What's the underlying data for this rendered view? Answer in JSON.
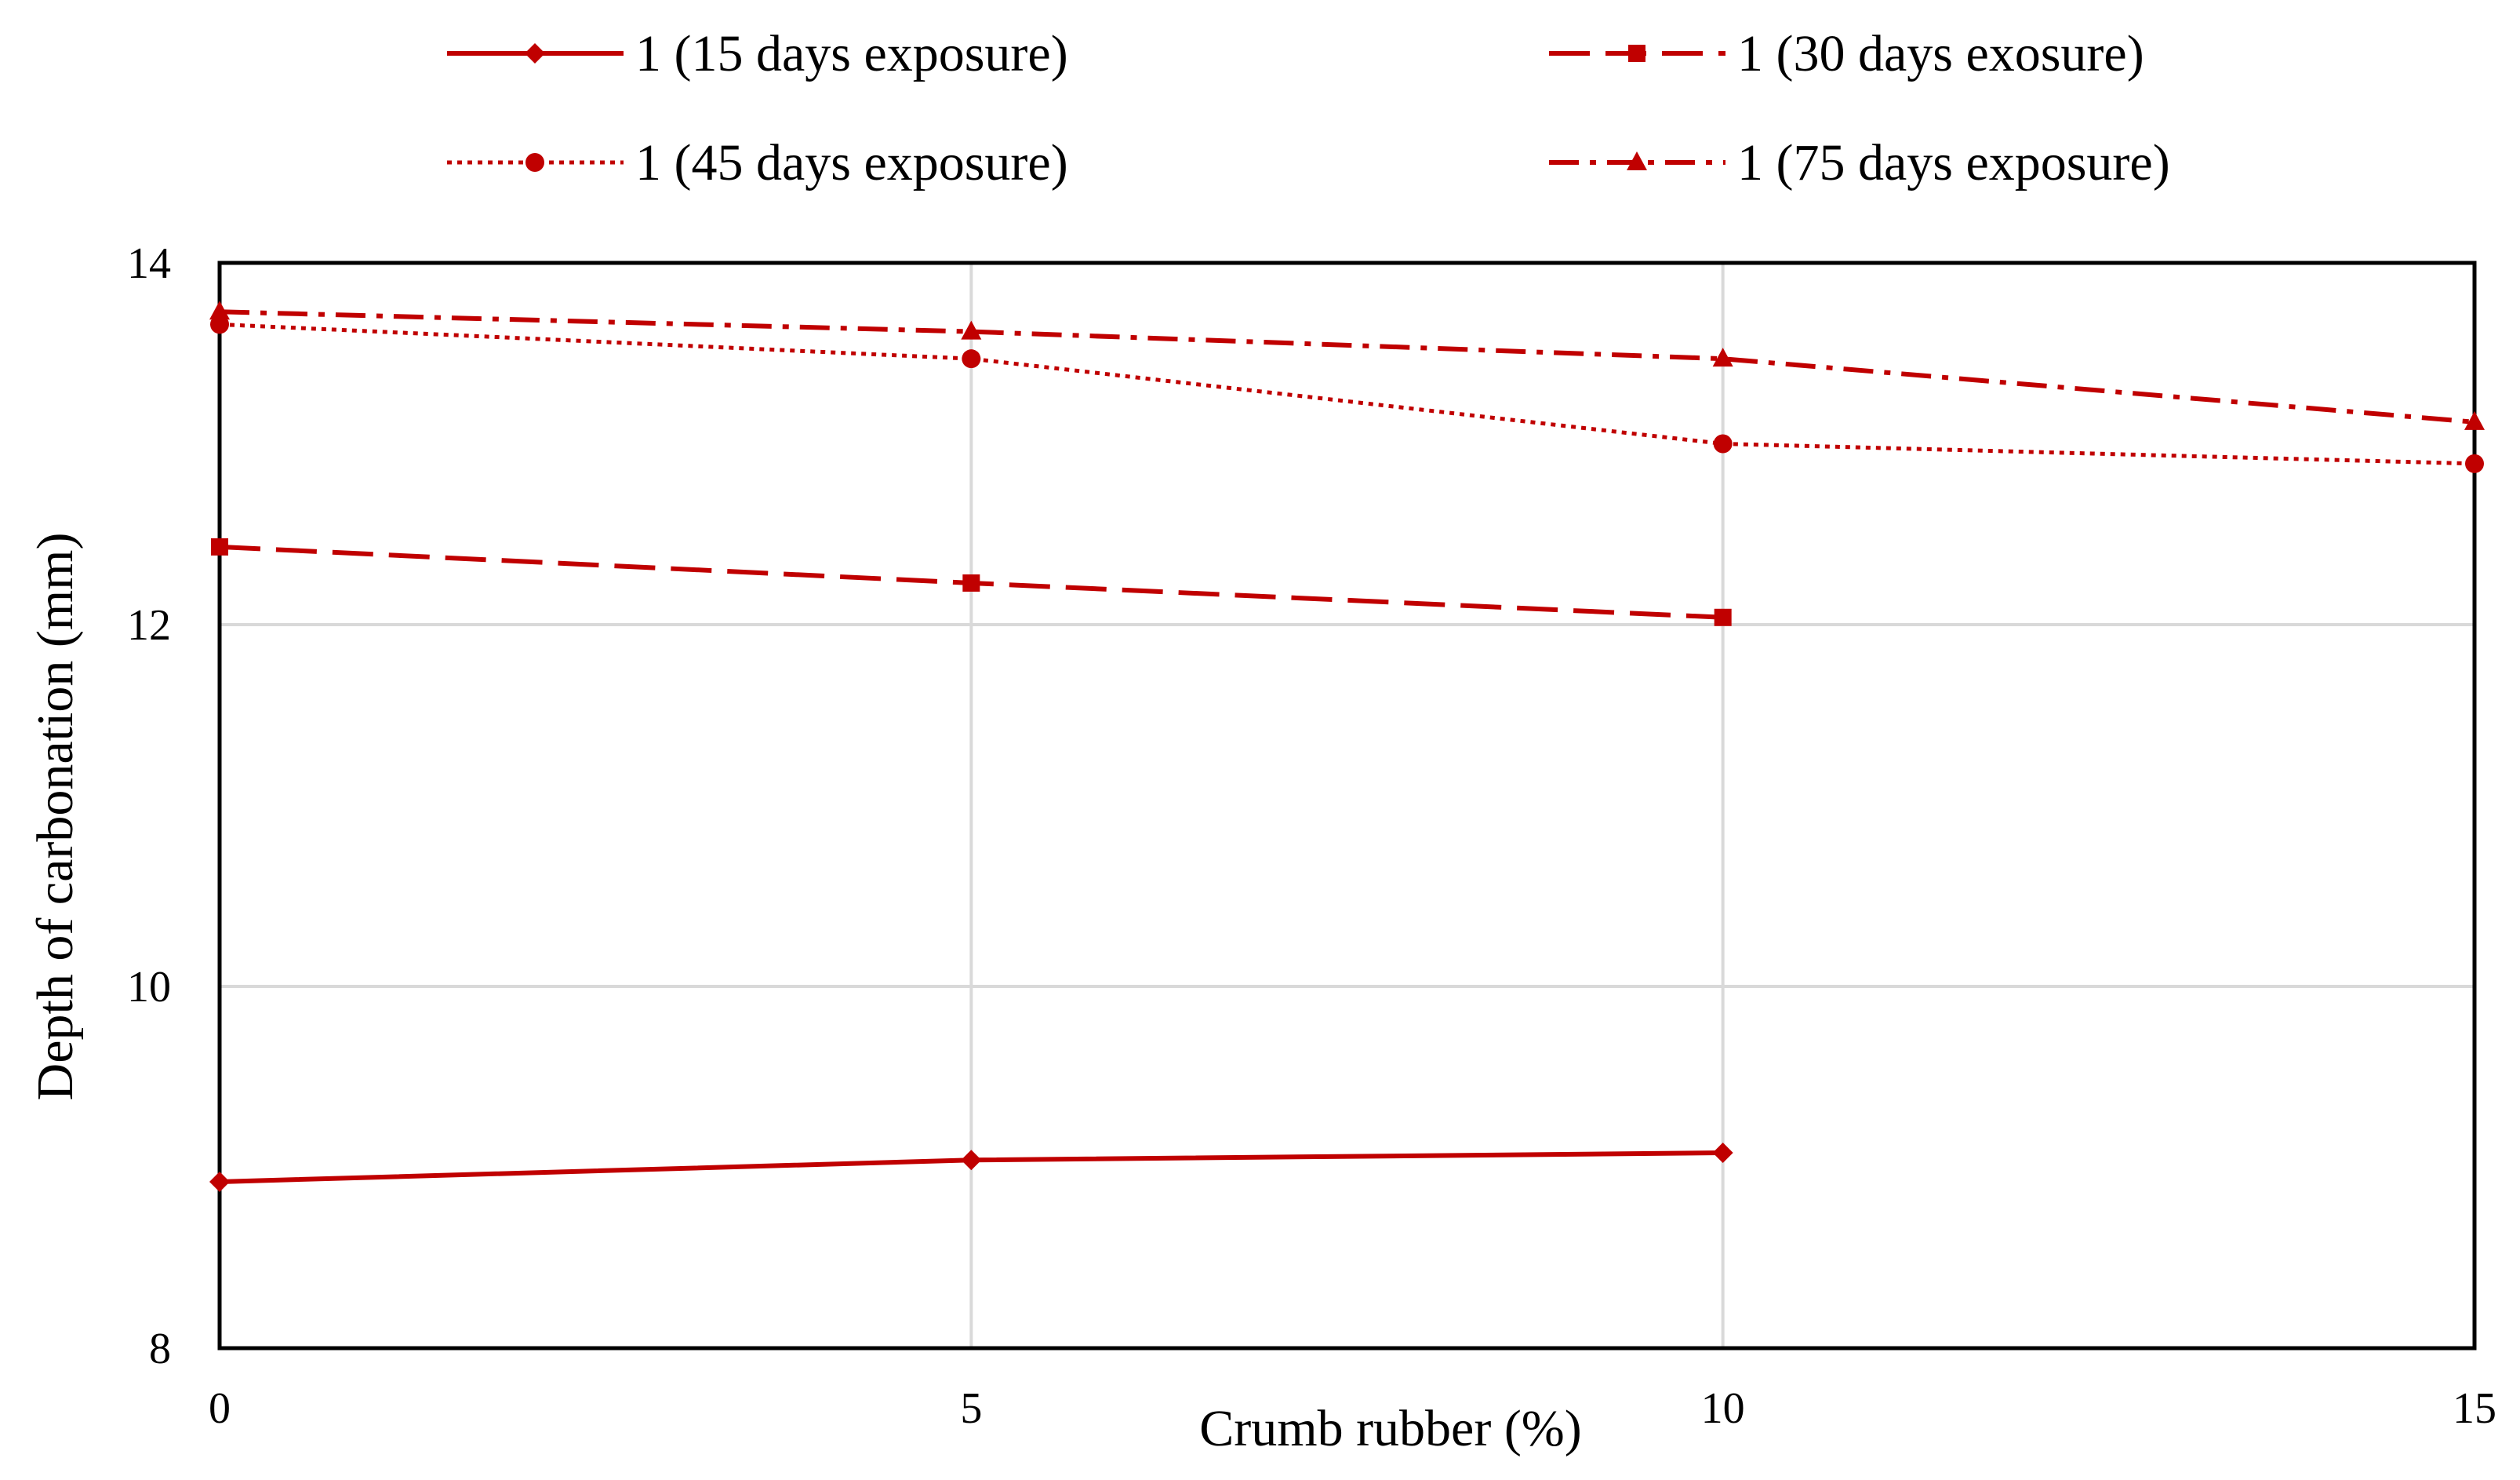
{
  "chart_data": {
    "type": "line",
    "title": "",
    "xlabel": "Crumb rubber (%)",
    "ylabel": "Depth of carbonation (mm)",
    "xlim": [
      0,
      15
    ],
    "ylim": [
      8,
      14
    ],
    "xticks": [
      0,
      5,
      10,
      15
    ],
    "yticks": [
      8,
      10,
      12,
      14
    ],
    "grid": true,
    "legend_position": "top",
    "series_color": "#C00000",
    "series": [
      {
        "name": "1 (15 days exposure)",
        "x": [
          0,
          5,
          10
        ],
        "values": [
          8.92,
          9.04,
          9.08
        ],
        "line": "solid",
        "marker": "diamond"
      },
      {
        "name": "1 (30 days exosure)",
        "x": [
          0,
          5,
          10
        ],
        "values": [
          12.43,
          12.23,
          12.04
        ],
        "line": "dashed",
        "marker": "square"
      },
      {
        "name": "1 (45 days exposure)",
        "x": [
          0,
          5,
          10,
          15
        ],
        "values": [
          13.66,
          13.47,
          13.0,
          12.89
        ],
        "line": "dotted",
        "marker": "circle"
      },
      {
        "name": "1 (75 days exposure)",
        "x": [
          0,
          5,
          10,
          15
        ],
        "values": [
          13.73,
          13.62,
          13.47,
          13.12
        ],
        "line": "dashdot",
        "marker": "triangle"
      }
    ]
  }
}
